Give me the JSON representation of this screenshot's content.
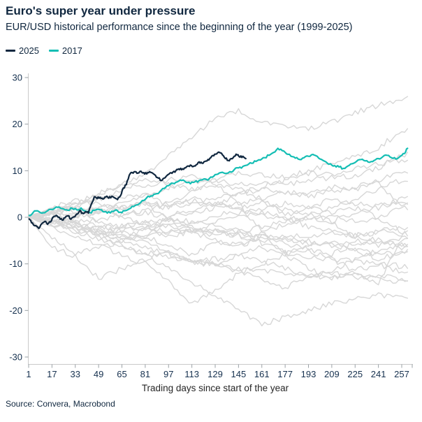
{
  "header": {
    "title": "Euro's super year under pressure",
    "subtitle": "EUR/USD historical performance since the beginning of the year (1999-2025)"
  },
  "legend": [
    {
      "label": "2025",
      "color": "#10273F"
    },
    {
      "label": "2017",
      "color": "#14BEB4"
    }
  ],
  "source": "Source: Convera, Macrobond",
  "colors": {
    "navy": "#10273F",
    "teal": "#14BEB4",
    "gray_line": "#D7D7D7",
    "axis": "#C9C9C9",
    "tick": "#9AA0A6",
    "label": "#16314F",
    "axis_title": "#262626",
    "background": "#FFFFFF"
  },
  "chart_data": {
    "type": "line",
    "title": "Euro's super year under pressure",
    "subtitle": "EUR/USD historical performance since the beginning of the year (1999-2025)",
    "xlabel": "Trading days since start of the year",
    "ylabel": "",
    "x_ticks": [
      1,
      17,
      33,
      49,
      65,
      81,
      97,
      113,
      129,
      145,
      161,
      177,
      193,
      209,
      225,
      241,
      257
    ],
    "y_ticks": [
      -30,
      -20,
      -10,
      0,
      10,
      20,
      30
    ],
    "xlim": [
      1,
      264
    ],
    "ylim": [
      -30,
      30
    ],
    "grid": false,
    "legend_position": "top-left",
    "unit": "percent change year-to-date",
    "series": [
      {
        "name": "2025",
        "color": "#10273F",
        "width": 2.2,
        "points": [
          [
            1,
            -0.3
          ],
          [
            3,
            -1.2
          ],
          [
            5,
            -1.8
          ],
          [
            8,
            -2.4
          ],
          [
            10,
            -1.4
          ],
          [
            12,
            -0.9
          ],
          [
            14,
            -1.5
          ],
          [
            16,
            -1.0
          ],
          [
            18,
            0.1
          ],
          [
            20,
            0.4
          ],
          [
            22,
            0.0
          ],
          [
            24,
            -0.6
          ],
          [
            26,
            -0.1
          ],
          [
            28,
            0.3
          ],
          [
            30,
            -0.4
          ],
          [
            32,
            0.1
          ],
          [
            34,
            0.7
          ],
          [
            36,
            1.4
          ],
          [
            38,
            0.9
          ],
          [
            40,
            1.2
          ],
          [
            42,
            0.9
          ],
          [
            44,
            2.8
          ],
          [
            46,
            4.4
          ],
          [
            48,
            4.0
          ],
          [
            50,
            4.3
          ],
          [
            52,
            3.9
          ],
          [
            54,
            4.4
          ],
          [
            56,
            4.1
          ],
          [
            58,
            4.5
          ],
          [
            60,
            4.2
          ],
          [
            62,
            3.8
          ],
          [
            64,
            4.6
          ],
          [
            66,
            6.3
          ],
          [
            68,
            7.0
          ],
          [
            70,
            9.0
          ],
          [
            72,
            9.6
          ],
          [
            74,
            9.8
          ],
          [
            76,
            9.5
          ],
          [
            78,
            9.9
          ],
          [
            80,
            9.6
          ],
          [
            82,
            9.3
          ],
          [
            84,
            9.8
          ],
          [
            86,
            9.5
          ],
          [
            88,
            9.0
          ],
          [
            90,
            8.4
          ],
          [
            92,
            7.9
          ],
          [
            94,
            8.4
          ],
          [
            96,
            9.0
          ],
          [
            98,
            9.5
          ],
          [
            100,
            9.7
          ],
          [
            102,
            10.0
          ],
          [
            104,
            10.4
          ],
          [
            106,
            10.2
          ],
          [
            108,
            10.6
          ],
          [
            110,
            11.0
          ],
          [
            112,
            11.2
          ],
          [
            114,
            10.9
          ],
          [
            116,
            11.3
          ],
          [
            118,
            11.9
          ],
          [
            120,
            11.6
          ],
          [
            122,
            12.0
          ],
          [
            124,
            12.4
          ],
          [
            126,
            12.8
          ],
          [
            128,
            13.2
          ],
          [
            130,
            13.6
          ],
          [
            132,
            13.9
          ],
          [
            134,
            13.4
          ],
          [
            136,
            12.6
          ],
          [
            138,
            12.2
          ],
          [
            140,
            12.6
          ],
          [
            142,
            13.1
          ],
          [
            144,
            13.4
          ],
          [
            146,
            12.9
          ],
          [
            148,
            13.1
          ],
          [
            150,
            12.6
          ]
        ]
      },
      {
        "name": "2017",
        "color": "#14BEB4",
        "width": 2.2,
        "points": [
          [
            1,
            0.4
          ],
          [
            4,
            1.0
          ],
          [
            7,
            1.4
          ],
          [
            10,
            0.9
          ],
          [
            13,
            1.2
          ],
          [
            16,
            1.7
          ],
          [
            19,
            2.0
          ],
          [
            22,
            2.2
          ],
          [
            25,
            1.8
          ],
          [
            28,
            1.5
          ],
          [
            31,
            1.9
          ],
          [
            34,
            1.6
          ],
          [
            37,
            2.0
          ],
          [
            40,
            1.3
          ],
          [
            43,
            1.0
          ],
          [
            46,
            1.5
          ],
          [
            49,
            1.7
          ],
          [
            52,
            1.2
          ],
          [
            55,
            0.9
          ],
          [
            58,
            1.3
          ],
          [
            61,
            1.6
          ],
          [
            64,
            1.1
          ],
          [
            67,
            1.4
          ],
          [
            70,
            1.8
          ],
          [
            73,
            2.3
          ],
          [
            76,
            2.7
          ],
          [
            79,
            3.6
          ],
          [
            82,
            4.2
          ],
          [
            85,
            4.6
          ],
          [
            88,
            5.0
          ],
          [
            91,
            5.5
          ],
          [
            94,
            6.2
          ],
          [
            97,
            6.8
          ],
          [
            100,
            7.3
          ],
          [
            103,
            7.6
          ],
          [
            106,
            7.9
          ],
          [
            109,
            7.5
          ],
          [
            112,
            7.2
          ],
          [
            115,
            7.6
          ],
          [
            118,
            7.9
          ],
          [
            121,
            8.2
          ],
          [
            124,
            8.0
          ],
          [
            127,
            8.6
          ],
          [
            130,
            9.2
          ],
          [
            133,
            9.6
          ],
          [
            136,
            9.4
          ],
          [
            139,
            9.8
          ],
          [
            142,
            10.2
          ],
          [
            145,
            10.6
          ],
          [
            148,
            10.9
          ],
          [
            151,
            11.2
          ],
          [
            154,
            11.6
          ],
          [
            157,
            12.0
          ],
          [
            160,
            12.3
          ],
          [
            163,
            12.8
          ],
          [
            166,
            13.3
          ],
          [
            169,
            13.9
          ],
          [
            172,
            14.8
          ],
          [
            175,
            14.3
          ],
          [
            178,
            13.6
          ],
          [
            181,
            13.1
          ],
          [
            184,
            12.7
          ],
          [
            187,
            12.4
          ],
          [
            190,
            12.8
          ],
          [
            193,
            13.1
          ],
          [
            196,
            13.5
          ],
          [
            199,
            13.1
          ],
          [
            202,
            12.4
          ],
          [
            205,
            11.9
          ],
          [
            208,
            11.5
          ],
          [
            211,
            11.1
          ],
          [
            214,
            10.8
          ],
          [
            217,
            10.5
          ],
          [
            220,
            11.0
          ],
          [
            223,
            11.5
          ],
          [
            226,
            12.0
          ],
          [
            229,
            12.4
          ],
          [
            232,
            12.1
          ],
          [
            235,
            11.8
          ],
          [
            238,
            12.2
          ],
          [
            241,
            12.6
          ],
          [
            244,
            13.0
          ],
          [
            247,
            13.3
          ],
          [
            250,
            12.8
          ],
          [
            253,
            12.5
          ],
          [
            256,
            13.1
          ],
          [
            259,
            13.7
          ],
          [
            261,
            14.8
          ]
        ]
      }
    ],
    "background_series": {
      "note": "Other years 1999-2024 drawn in gray (values estimated from pixels)",
      "color": "#D7D7D7",
      "width": 1.4,
      "control_days": [
        1,
        17,
        33,
        49,
        65,
        81,
        97,
        113,
        129,
        145,
        161,
        177,
        193,
        209,
        225,
        241,
        257
      ],
      "values": [
        [
          0,
          -1.5,
          -3,
          -4.5,
          -6,
          -7.5,
          -8.5,
          -9.5,
          -10,
          -11,
          -11.5,
          -12,
          -12.5,
          -13,
          -12,
          -13,
          -14
        ],
        [
          0,
          -1,
          -2.5,
          -4,
          -6,
          -8,
          -11,
          -14,
          -17,
          -20,
          -23,
          -21.5,
          -20,
          -18.5,
          -17.5,
          -16.5,
          -17.5
        ],
        [
          0,
          -0.5,
          -1.5,
          -3,
          -4.5,
          -4,
          -6,
          -8,
          -5.5,
          -6.5,
          -4,
          -5.5,
          -7,
          -8,
          -5.5,
          -5,
          -6
        ],
        [
          0,
          -0.5,
          -1,
          -0.5,
          0.5,
          1.5,
          3,
          5.5,
          8,
          9.5,
          9,
          8.5,
          10,
          11.5,
          13,
          15,
          18.5
        ],
        [
          0.5,
          1.5,
          3,
          5,
          7,
          9.5,
          13,
          17,
          21.5,
          23,
          20.5,
          19.5,
          19,
          20.5,
          22.5,
          24,
          25.5
        ],
        [
          0,
          1,
          -1,
          -3,
          -5,
          -4,
          -3,
          -2,
          -4,
          -3,
          -2,
          -1,
          0.5,
          2,
          4,
          6,
          8
        ],
        [
          0,
          -1.5,
          -3,
          -2.5,
          -4,
          -5,
          -7.5,
          -9.5,
          -9,
          -8,
          -9.5,
          -11,
          -12.5,
          -12,
          -13,
          -12.5,
          -13.5
        ],
        [
          0,
          2,
          1,
          2,
          3,
          4.5,
          6.5,
          7.5,
          8,
          7,
          7.5,
          7,
          8,
          8.5,
          9,
          10.5,
          13.5
        ],
        [
          0,
          -1,
          0,
          1,
          2,
          3,
          2.5,
          3.5,
          4,
          5,
          6.5,
          8,
          9.5,
          9,
          10.5,
          11.5,
          12
        ],
        [
          0,
          1,
          3,
          5,
          7,
          6.5,
          8,
          9,
          7,
          3,
          -3,
          -8,
          -11,
          -13,
          -12,
          -14,
          -5
        ],
        [
          0,
          -4.5,
          -8,
          -6.5,
          -5,
          -2.5,
          0,
          1,
          2,
          3,
          4,
          5.5,
          5,
          6.5,
          6,
          7.5,
          2.5
        ],
        [
          0,
          -2,
          -4,
          -6,
          -8,
          -10,
          -14,
          -18.5,
          -16,
          -12,
          -10,
          -8,
          -6,
          -5,
          -7,
          -9,
          -7.5
        ],
        [
          0,
          1,
          2.5,
          4,
          6,
          8,
          7,
          6,
          7,
          6,
          4,
          0.5,
          2,
          1,
          2,
          0,
          -3
        ],
        [
          0,
          0.5,
          2,
          1.5,
          0,
          -2,
          -4,
          -3,
          -5,
          -6,
          -3.5,
          -1.5,
          0,
          0.5,
          -1,
          0,
          2
        ],
        [
          0,
          1,
          2,
          -1,
          -2,
          -1,
          0,
          -1.5,
          0.5,
          1,
          2,
          3,
          2,
          4,
          3,
          2,
          4
        ],
        [
          0,
          -0.5,
          0.5,
          1,
          0.5,
          1,
          0,
          -1,
          -2,
          -3,
          -5.5,
          -7.5,
          -8.5,
          -9,
          -9.5,
          -10,
          -12
        ],
        [
          0,
          -6.5,
          -8.5,
          -13,
          -11,
          -9,
          -7.5,
          -9.5,
          -10.5,
          -8,
          -6.5,
          -8,
          -7,
          -9,
          -11.5,
          -10,
          -10.5
        ],
        [
          0,
          0.5,
          2,
          4,
          4.5,
          5,
          2.5,
          3,
          3,
          2,
          3,
          1.5,
          1,
          -1,
          -4.5,
          -3,
          -3.5
        ],
        [
          0,
          2,
          3.5,
          3,
          2,
          3,
          -0.5,
          -2.5,
          -3,
          -4,
          -4,
          -5,
          -5,
          -6,
          -5,
          -6,
          -4.5
        ],
        [
          0,
          -0.8,
          -1.2,
          -2,
          -2.2,
          -3,
          -1.5,
          -2.5,
          -3.2,
          -3,
          -4.5,
          -4,
          -4.2,
          -3.2,
          -4,
          -3,
          -2.2
        ],
        [
          0,
          -0.8,
          -2,
          -4,
          -3,
          -4.5,
          0.5,
          1.5,
          2.5,
          5,
          6,
          5.5,
          4.5,
          5.5,
          6.5,
          8,
          9.5
        ],
        [
          0,
          -0.8,
          -2,
          -3.5,
          -2,
          -1,
          -2,
          -3,
          -3,
          -4,
          -5,
          -4.5,
          -5.5,
          -6,
          -7,
          -8,
          -7.5
        ],
        [
          0,
          0.5,
          -1.5,
          -3.5,
          -5,
          -6.5,
          -8,
          -9.5,
          -10,
          -11.5,
          -13.5,
          -15,
          -13,
          -11.5,
          -9,
          -7,
          -6
        ],
        [
          0,
          1.5,
          0.5,
          1,
          2,
          3,
          2,
          4,
          3,
          2,
          0.5,
          -0.5,
          0,
          -1,
          1,
          2.5,
          3
        ],
        [
          0,
          -0.8,
          -1.8,
          -2,
          -3,
          -2.2,
          -3,
          -3,
          -1,
          0,
          1,
          0,
          -2,
          -3,
          -4,
          -5,
          -6.5
        ]
      ]
    }
  }
}
